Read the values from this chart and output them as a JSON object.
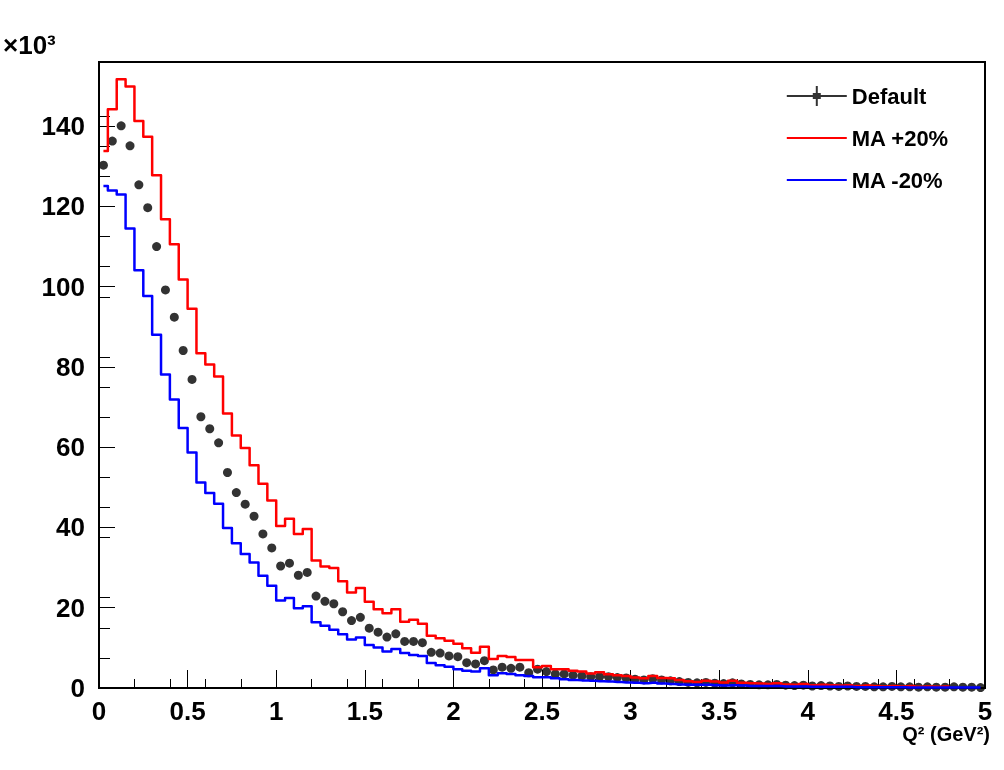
{
  "chart_data": {
    "type": "step",
    "xlabel": "Q² (GeV²)",
    "ylabel": "×10³",
    "x": [
      0.025,
      0.075,
      0.125,
      0.175,
      0.225,
      0.275,
      0.325,
      0.375,
      0.425,
      0.475,
      0.525,
      0.575,
      0.625,
      0.675,
      0.725,
      0.775,
      0.825,
      0.875,
      0.925,
      0.975,
      1.025,
      1.075,
      1.125,
      1.175,
      1.225,
      1.275,
      1.325,
      1.375,
      1.425,
      1.475,
      1.525,
      1.575,
      1.625,
      1.675,
      1.725,
      1.775,
      1.825,
      1.875,
      1.925,
      1.975,
      2.025,
      2.075,
      2.125,
      2.175,
      2.225,
      2.275,
      2.325,
      2.375,
      2.425,
      2.475,
      2.525,
      2.575,
      2.625,
      2.675,
      2.725,
      2.775,
      2.825,
      2.875,
      2.925,
      2.975,
      3.025,
      3.075,
      3.125,
      3.175,
      3.225,
      3.275,
      3.325,
      3.375,
      3.425,
      3.475,
      3.525,
      3.575,
      3.625,
      3.675,
      3.725,
      3.775,
      3.825,
      3.875,
      3.925,
      3.975,
      4.025,
      4.075,
      4.125,
      4.175,
      4.225,
      4.275,
      4.325,
      4.375,
      4.425,
      4.475,
      4.525,
      4.575,
      4.625,
      4.675,
      4.725,
      4.775,
      4.825,
      4.875,
      4.925,
      4.975
    ],
    "series": [
      {
        "name": "Default",
        "type": "scatter",
        "marker": "circle",
        "color": "#000000",
        "values": [
          130.3,
          136.3,
          140.1,
          135.1,
          125.4,
          119.7,
          110.0,
          99.2,
          92.4,
          84.1,
          76.9,
          67.6,
          64.6,
          61.1,
          53.7,
          48.7,
          45.8,
          42.8,
          38.4,
          34.9,
          30.4,
          31.1,
          28.1,
          28.8,
          22.9,
          21.6,
          21.0,
          19.0,
          16.8,
          17.6,
          14.9,
          13.9,
          12.7,
          13.5,
          11.6,
          11.6,
          11.3,
          8.9,
          8.7,
          8.0,
          7.8,
          6.3,
          6.0,
          6.8,
          4.5,
          5.2,
          4.9,
          5.2,
          3.8,
          4.7,
          4.1,
          3.5,
          3.5,
          3.2,
          3.0,
          2.8,
          2.8,
          2.8,
          2.6,
          2.5,
          2.2,
          2.0,
          2.3,
          2.0,
          1.8,
          1.6,
          1.4,
          1.3,
          1.4,
          1.2,
          1.1,
          1.3,
          1.0,
          0.9,
          0.8,
          0.8,
          0.9,
          0.7,
          0.6,
          0.7,
          0.5,
          0.6,
          0.5,
          0.4,
          0.5,
          0.4,
          0.4,
          0.3,
          0.3,
          0.4,
          0.3,
          0.3,
          0.2,
          0.3,
          0.2,
          0.2,
          0.3,
          0.2,
          0.2,
          0.1
        ]
      },
      {
        "name": "MA +20%",
        "color": "#ff0000",
        "values": [
          133.8,
          144.2,
          151.7,
          149.9,
          141.3,
          137.4,
          127.8,
          116.8,
          110.6,
          101.8,
          94.5,
          83.4,
          80.6,
          77.6,
          68.4,
          62.9,
          59.8,
          55.5,
          50.9,
          46.7,
          40.4,
          42.2,
          38.4,
          39.6,
          31.8,
          30.3,
          29.9,
          26.6,
          23.8,
          24.9,
          21.5,
          19.6,
          18.6,
          19.6,
          16.5,
          17.0,
          16.0,
          13.0,
          12.4,
          11.8,
          11.0,
          9.9,
          8.8,
          10.3,
          7.2,
          8.0,
          7.7,
          7.0,
          7.0,
          5.2,
          5.5,
          4.7,
          4.7,
          4.3,
          4.1,
          3.6,
          3.9,
          3.4,
          3.2,
          3.0,
          2.6,
          2.4,
          3.0,
          2.5,
          2.4,
          2.0,
          1.7,
          1.5,
          1.8,
          1.6,
          1.4,
          1.8,
          1.3,
          1.2,
          1.1,
          1.0,
          1.2,
          0.9,
          0.8,
          1.0,
          0.7,
          0.8,
          0.7,
          0.6,
          0.7,
          0.5,
          0.6,
          0.5,
          0.4,
          0.5,
          0.4,
          0.5,
          0.3,
          0.4,
          0.3,
          0.4,
          null,
          null,
          null,
          null
        ]
      },
      {
        "name": "MA -20%",
        "color": "#0000ff",
        "values": [
          125.1,
          124.0,
          123.0,
          114.5,
          104.1,
          97.7,
          88.0,
          78.1,
          71.9,
          64.8,
          58.7,
          51.2,
          48.6,
          45.9,
          39.9,
          36.1,
          33.4,
          31.3,
          28.0,
          25.5,
          21.8,
          22.4,
          19.9,
          20.4,
          16.4,
          15.5,
          14.5,
          13.4,
          12.1,
          12.6,
          10.7,
          10.1,
          9.1,
          9.7,
          8.7,
          8.2,
          8.0,
          6.2,
          5.7,
          5.3,
          4.7,
          4.3,
          4.1,
          4.9,
          3.2,
          3.7,
          3.5,
          3.2,
          3.0,
          2.7,
          2.7,
          2.4,
          2.2,
          2.0,
          1.9,
          1.8,
          1.7,
          1.6,
          1.5,
          1.4,
          1.3,
          1.2,
          1.3,
          1.1,
          1.0,
          0.9,
          0.8,
          0.8,
          0.8,
          0.7,
          0.6,
          0.7,
          0.6,
          0.5,
          0.5,
          0.5,
          0.5,
          0.4,
          0.4,
          0.4,
          0.3,
          0.3,
          0.3,
          0.3,
          0.3,
          0.2,
          0.2,
          0.2,
          0.2,
          0.2,
          0.2,
          0.1,
          0.1,
          0.1,
          0.1,
          0.1,
          0.1,
          0.1,
          0.1,
          0.1
        ]
      }
    ],
    "xlim": [
      0,
      5
    ],
    "xticks": [
      0,
      0.5,
      1,
      1.5,
      2,
      2.5,
      3,
      3.5,
      4,
      4.5,
      5
    ],
    "ylim": [
      0,
      156
    ],
    "yticks": [
      0,
      20,
      40,
      60,
      80,
      100,
      120,
      140
    ],
    "legend": "top right"
  }
}
